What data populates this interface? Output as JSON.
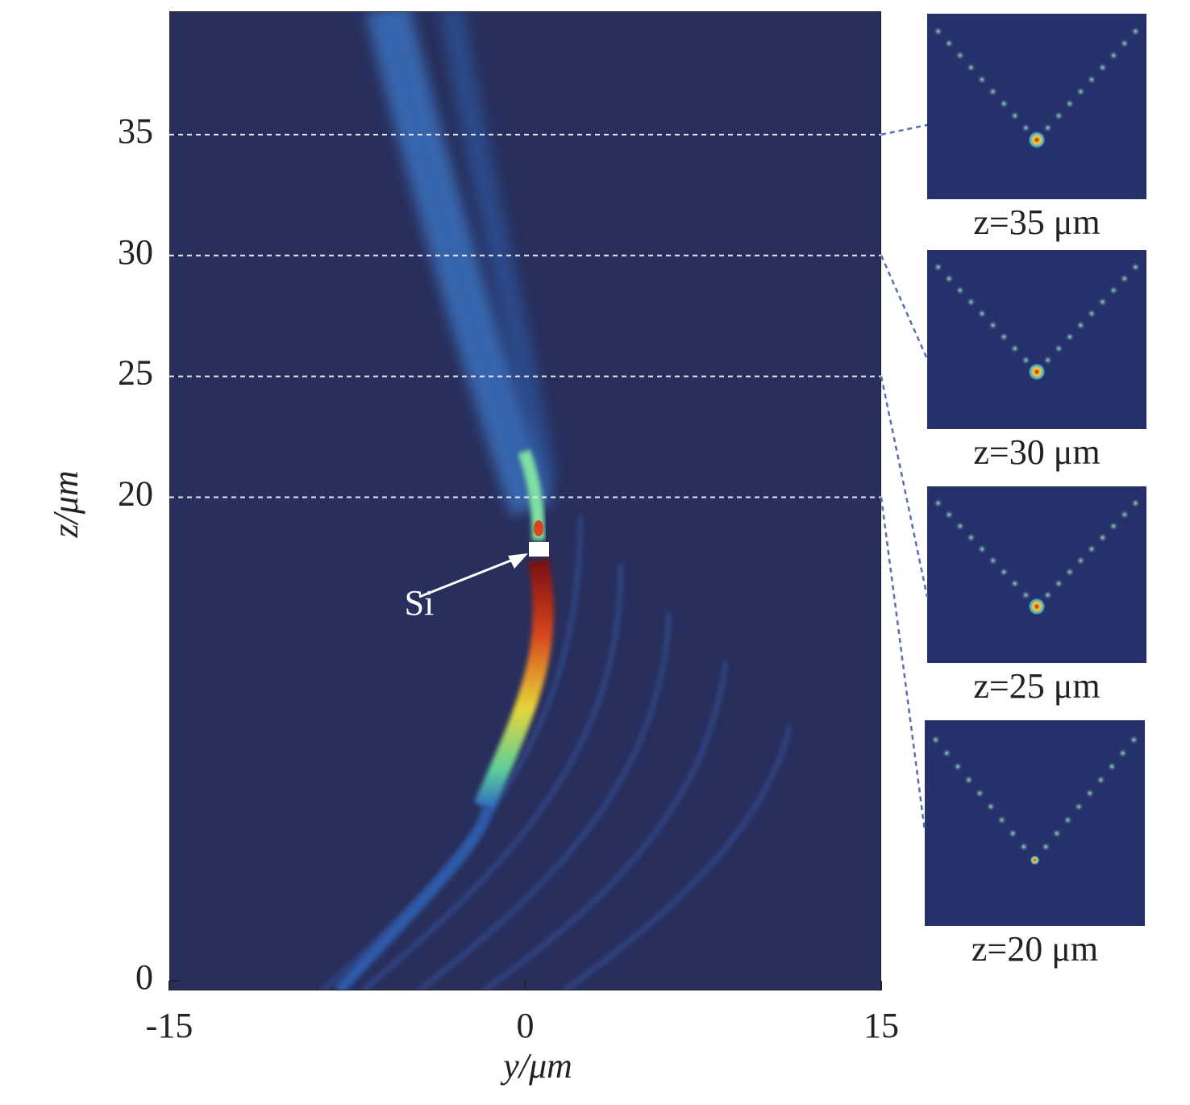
{
  "chart_data": {
    "type": "heatmap",
    "xlabel": "y/μm",
    "ylabel": "z/μm",
    "xlim": [
      -15,
      15
    ],
    "xticks": [
      -15,
      0,
      15
    ],
    "ylim": [
      -0.4,
      40.1
    ],
    "yticks": [
      0,
      20,
      25,
      30,
      35
    ],
    "guide_lines": [
      35,
      30,
      25,
      20
    ],
    "annotation": "Si",
    "insets": [
      "z=35 μm",
      "z=30 μm",
      "z=25 μm",
      "z=20 μm"
    ]
  }
}
